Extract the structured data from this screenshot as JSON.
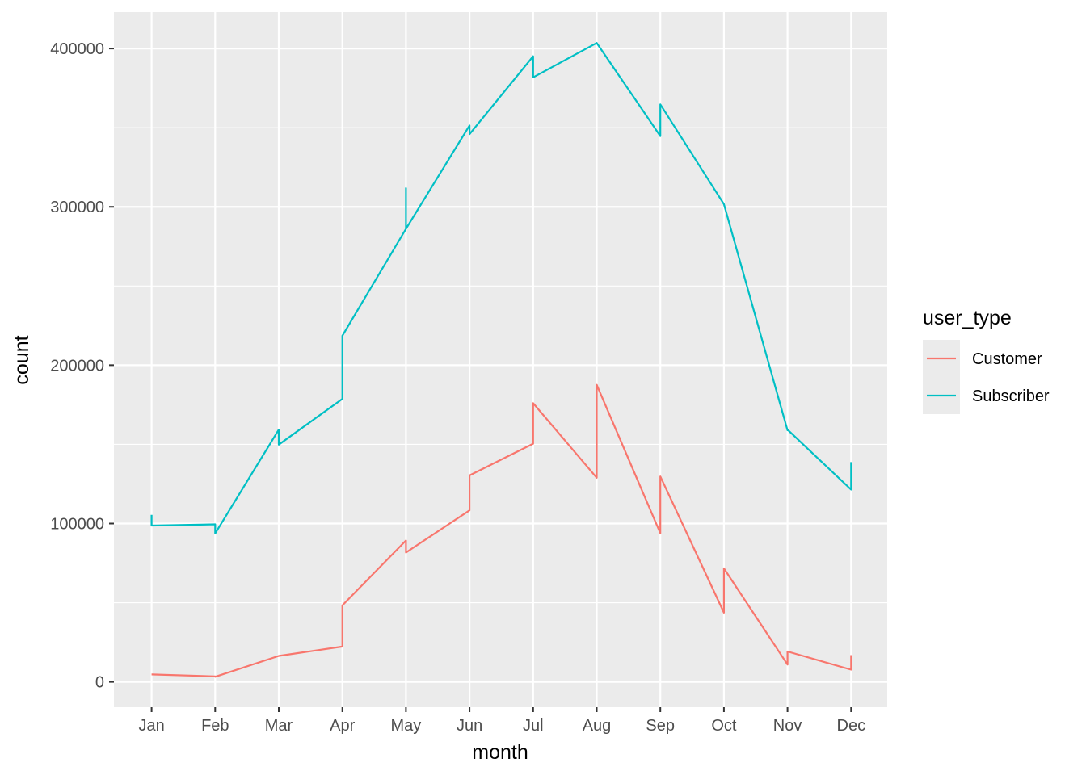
{
  "chart_data": {
    "type": "line",
    "xlabel": "month",
    "ylabel": "count",
    "categories": [
      "Jan",
      "Feb",
      "Mar",
      "Apr",
      "May",
      "Jun",
      "Jul",
      "Aug",
      "Sep",
      "Oct",
      "Nov",
      "Dec"
    ],
    "yticks": [
      "0",
      "100000",
      "200000",
      "300000",
      "400000"
    ],
    "ylim": [
      -16000,
      423000
    ],
    "grid": true,
    "legend": {
      "title": "user_type",
      "placement": "right",
      "entries": [
        "Customer",
        "Subscriber"
      ]
    },
    "series": [
      {
        "name": "Customer",
        "color": "#F8766D",
        "points": [
          {
            "x": "Jan",
            "y": 4700
          },
          {
            "x": "Feb",
            "y": 3500
          },
          {
            "x": "Feb",
            "y": 3200
          },
          {
            "x": "Mar",
            "y": 16400
          },
          {
            "x": "Apr",
            "y": 22300
          },
          {
            "x": "Apr",
            "y": 48300
          },
          {
            "x": "May",
            "y": 89300
          },
          {
            "x": "May",
            "y": 81700
          },
          {
            "x": "Jun",
            "y": 108300
          },
          {
            "x": "Jun",
            "y": 130400
          },
          {
            "x": "Jul",
            "y": 150400
          },
          {
            "x": "Jul",
            "y": 176000
          },
          {
            "x": "Aug",
            "y": 128900
          },
          {
            "x": "Aug",
            "y": 187600
          },
          {
            "x": "Sep",
            "y": 93900
          },
          {
            "x": "Sep",
            "y": 129700
          },
          {
            "x": "Oct",
            "y": 43700
          },
          {
            "x": "Oct",
            "y": 71700
          },
          {
            "x": "Nov",
            "y": 10900
          },
          {
            "x": "Nov",
            "y": 19200
          },
          {
            "x": "Dec",
            "y": 7700
          },
          {
            "x": "Dec",
            "y": 16900
          }
        ]
      },
      {
        "name": "Subscriber",
        "color": "#00BFC4",
        "points": [
          {
            "x": "Jan",
            "y": 105500
          },
          {
            "x": "Jan",
            "y": 98700
          },
          {
            "x": "Feb",
            "y": 99500
          },
          {
            "x": "Feb",
            "y": 93700
          },
          {
            "x": "Mar",
            "y": 159300
          },
          {
            "x": "Mar",
            "y": 149800
          },
          {
            "x": "Apr",
            "y": 178700
          },
          {
            "x": "Apr",
            "y": 218600
          },
          {
            "x": "May",
            "y": 286100
          },
          {
            "x": "May",
            "y": 311800
          },
          {
            "x": "May",
            "y": 286100
          },
          {
            "x": "Jun",
            "y": 351400
          },
          {
            "x": "Jun",
            "y": 345900
          },
          {
            "x": "Jul",
            "y": 395100
          },
          {
            "x": "Jul",
            "y": 381800
          },
          {
            "x": "Aug",
            "y": 403500
          },
          {
            "x": "Sep",
            "y": 344700
          },
          {
            "x": "Sep",
            "y": 364700
          },
          {
            "x": "Oct",
            "y": 301700
          },
          {
            "x": "Nov",
            "y": 158900
          },
          {
            "x": "Nov",
            "y": 159300
          },
          {
            "x": "Dec",
            "y": 121400
          },
          {
            "x": "Dec",
            "y": 138800
          }
        ]
      }
    ]
  }
}
